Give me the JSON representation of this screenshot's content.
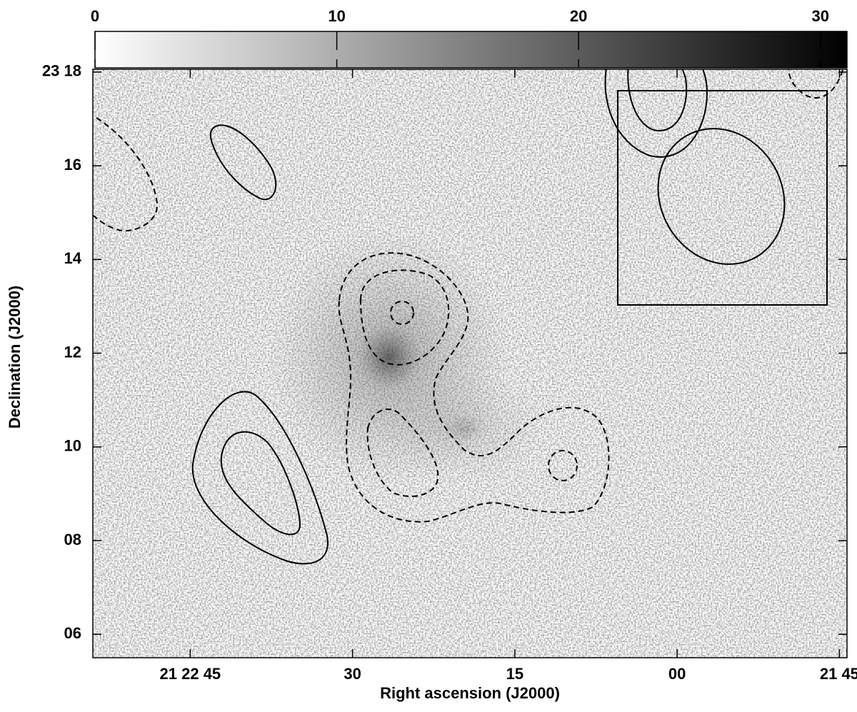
{
  "chart_data": {
    "type": "image",
    "xlabel": "Right ascension (J2000)",
    "ylabel": "Declination (J2000)",
    "xlim": [
      54,
      -15.7
    ],
    "xticks": [
      {
        "value": 45,
        "label": "21 22 45"
      },
      30,
      15,
      {
        "value": 0,
        "label": "00"
      },
      {
        "value": -15,
        "label": "21 45"
      }
    ],
    "ylim": [
      5.5,
      18.06
    ],
    "yticks": [
      {
        "value": 18,
        "label": "23 18"
      },
      16,
      14,
      12,
      10,
      {
        "value": 8,
        "label": "08"
      },
      {
        "value": 6,
        "label": "06"
      }
    ],
    "colorbar": {
      "lim": [
        0,
        31.1
      ],
      "ticks": [
        0,
        10,
        20,
        30
      ],
      "colors": [
        "#ffffff",
        "#000000"
      ]
    }
  }
}
